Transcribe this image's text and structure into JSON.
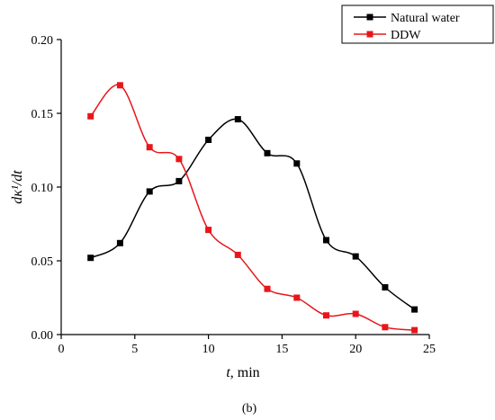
{
  "chart_data": {
    "type": "line",
    "x": [
      2,
      4,
      6,
      8,
      10,
      12,
      14,
      16,
      18,
      20,
      22,
      24
    ],
    "series": [
      {
        "name": "Natural water",
        "color": "#000000",
        "marker": "square",
        "values": [
          0.052,
          0.062,
          0.097,
          0.104,
          0.132,
          0.146,
          0.123,
          0.116,
          0.064,
          0.053,
          0.032,
          0.017
        ]
      },
      {
        "name": "DDW",
        "color": "#e8161b",
        "marker": "square",
        "values": [
          0.148,
          0.169,
          0.127,
          0.119,
          0.071,
          0.054,
          0.031,
          0.025,
          0.013,
          0.014,
          0.005,
          0.003
        ]
      }
    ],
    "xlim": [
      0,
      25
    ],
    "ylim": [
      0,
      0.2
    ],
    "xticks": [
      "0",
      "5",
      "10",
      "15",
      "20",
      "25"
    ],
    "yticks": [
      "0.00",
      "0.05",
      "0.10",
      "0.15",
      "0.20"
    ],
    "xlabel_italic": "t",
    "xlabel_rest": ", min",
    "ylabel": "dκ¹/dt",
    "legend_position": "top-right",
    "grid": false,
    "caption": "(b)"
  }
}
